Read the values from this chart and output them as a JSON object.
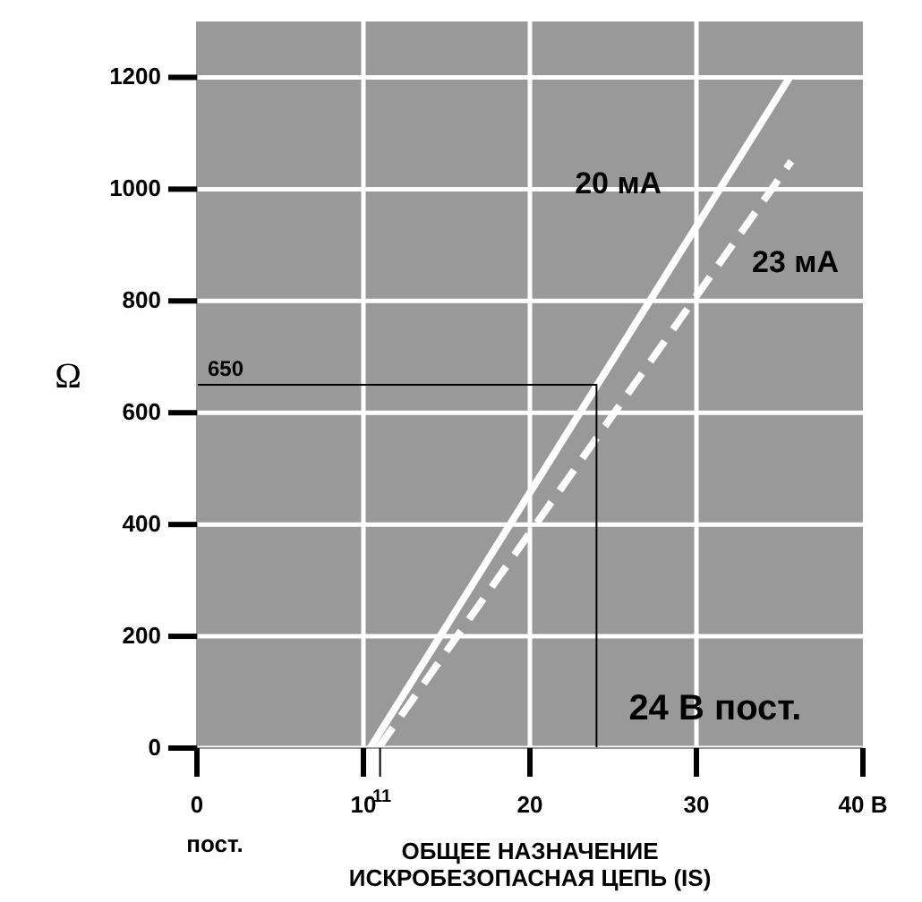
{
  "chart_data": {
    "type": "line",
    "xlabel": "ОБЩЕЕ НАЗНАЧЕНИЕ\nИСКРОБЕЗОПАСНАЯ ЦЕПЬ (IS)",
    "ylabel": "Ω",
    "xlim": [
      0,
      40
    ],
    "ylim": [
      0,
      1300
    ],
    "xticks": [
      {
        "value": 0,
        "label": "0\nпост."
      },
      10,
      11,
      20,
      30,
      {
        "value": 40,
        "label": "40 В"
      }
    ],
    "yticks": [
      0,
      200,
      400,
      600,
      800,
      1000,
      1200
    ],
    "grid": true,
    "marker": "none",
    "series": [
      {
        "name": "20 мА",
        "color": "#ffffff",
        "x": [
          10.4,
          35.6
        ],
        "values": [
          0,
          1200
        ],
        "line_style": "solid"
      },
      {
        "name": "23 мА",
        "color": "#ffffff",
        "x": [
          10.9,
          35.7
        ],
        "values": [
          0,
          1050
        ],
        "line_style": "dashed"
      },
      {
        "color": "#000000",
        "x": [
          0,
          24,
          24
        ],
        "values": [
          650,
          650,
          0
        ],
        "line_style": "solid"
      }
    ],
    "annotations": [
      {
        "text": "650",
        "x": 0,
        "y": 650
      },
      {
        "text": "24 В пост.",
        "x": 24,
        "y": 0
      }
    ]
  }
}
